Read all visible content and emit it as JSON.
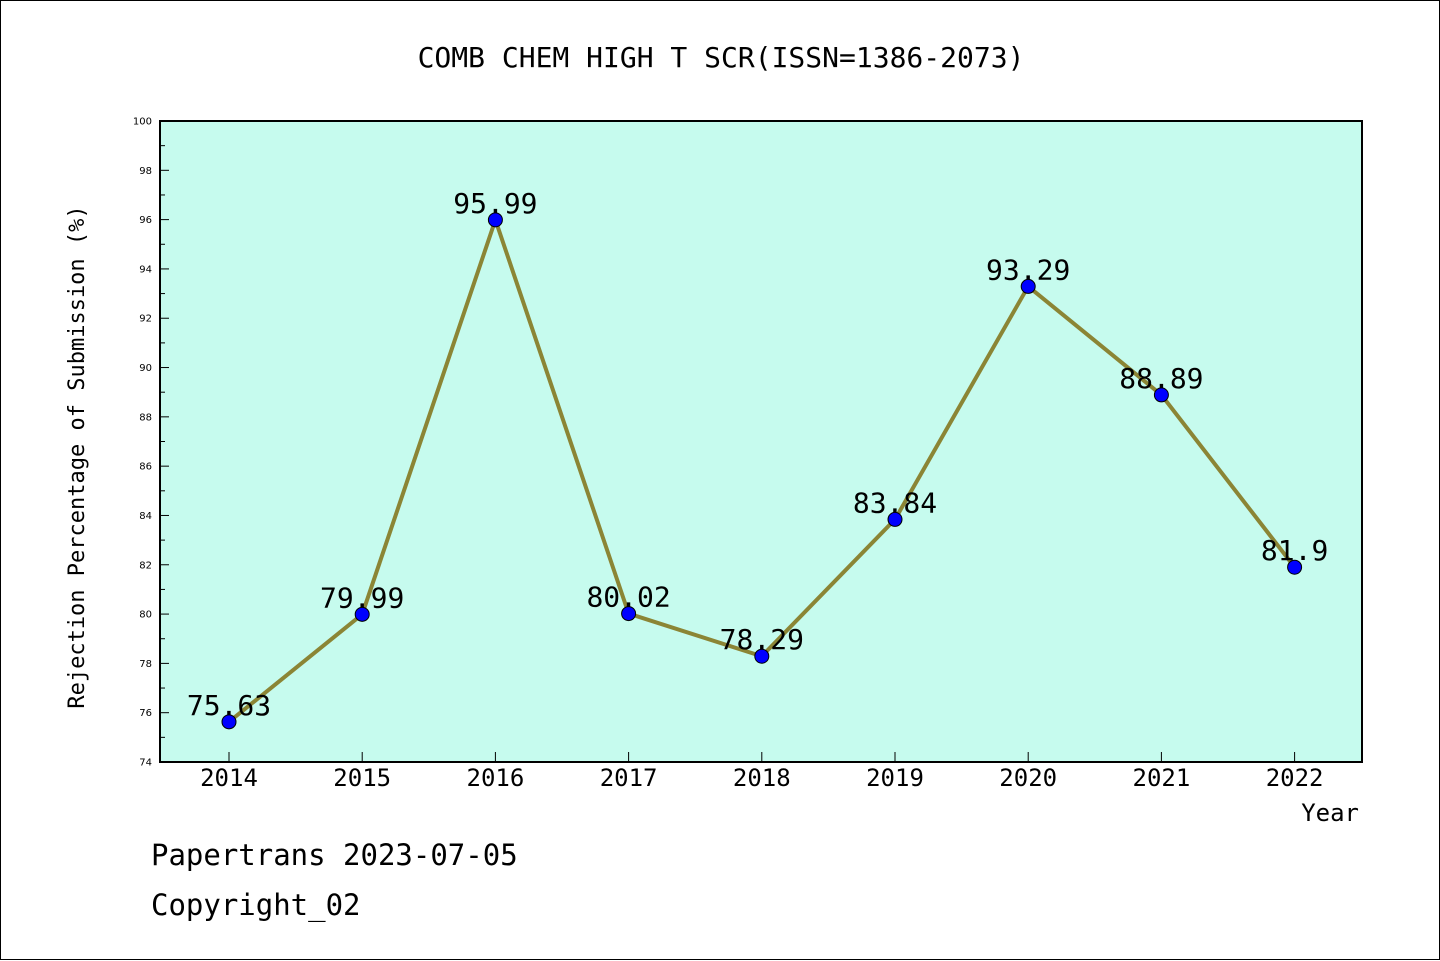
{
  "chart_data": {
    "type": "line",
    "title": "COMB CHEM HIGH T SCR(ISSN=1386-2073)",
    "xlabel": "Year",
    "ylabel": "Rejection Percentage of Submission (%)",
    "x": [
      "2014",
      "2015",
      "2016",
      "2017",
      "2018",
      "2019",
      "2020",
      "2021",
      "2022"
    ],
    "series": [
      {
        "values": [
          75.63,
          79.99,
          95.99,
          80.02,
          78.29,
          83.84,
          93.29,
          88.89,
          81.9
        ],
        "labels": [
          "75.63",
          "79.99",
          "95.99",
          "80.02",
          "78.29",
          "83.84",
          "93.29",
          "88.89",
          "81.9"
        ]
      }
    ],
    "ylim": [
      74,
      100
    ],
    "yticks": [
      "74",
      "76",
      "78",
      "80",
      "82",
      "84",
      "86",
      "88",
      "90",
      "92",
      "94",
      "96",
      "98",
      "100"
    ],
    "plot_background": "#c6fbee",
    "line_color": "#8b8535",
    "marker_color": "#0000ff",
    "grid": false
  },
  "footer": {
    "line1": "Papertrans 2023-07-05",
    "line2": "Copyright_02"
  }
}
